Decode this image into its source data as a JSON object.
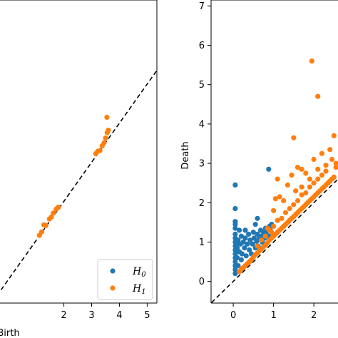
{
  "colors": {
    "h0": "#1f77b4",
    "h1": "#ff7f0e",
    "frame": "#000000",
    "diagonal": "#000000"
  },
  "chart_data": [
    {
      "type": "scatter",
      "xlabel": "Birth",
      "ylabel": "",
      "xlim": [
        -0.3,
        5.35
      ],
      "ylim": [
        -0.6,
        7.15
      ],
      "xticks": [
        {
          "v": 2,
          "label": "2"
        },
        {
          "v": 3,
          "label": "3"
        },
        {
          "v": 4,
          "label": "4"
        },
        {
          "v": 5,
          "label": "5"
        }
      ],
      "yticks": [],
      "diagonal": true,
      "grid": false,
      "legend": {
        "placement": "bottom-right",
        "entries": [
          "H0",
          "H1"
        ]
      },
      "series": [
        {
          "name": "H0",
          "color": "#1f77b4",
          "points": []
        },
        {
          "name": "H1",
          "color": "#ff7f0e",
          "points": [
            [
              1.12,
              1.13
            ],
            [
              1.2,
              1.22
            ],
            [
              1.28,
              1.4
            ],
            [
              1.35,
              1.38
            ],
            [
              1.48,
              1.55
            ],
            [
              1.55,
              1.6
            ],
            [
              1.62,
              1.7
            ],
            [
              1.72,
              1.8
            ],
            [
              1.8,
              1.85
            ],
            [
              3.15,
              3.22
            ],
            [
              3.22,
              3.28
            ],
            [
              3.3,
              3.3
            ],
            [
              3.38,
              3.42
            ],
            [
              3.45,
              3.5
            ],
            [
              3.5,
              3.62
            ],
            [
              3.56,
              3.76
            ],
            [
              3.6,
              3.82
            ],
            [
              3.55,
              4.15
            ]
          ]
        }
      ]
    },
    {
      "type": "scatter",
      "xlabel": "",
      "ylabel": "Death",
      "xlim": [
        -0.55,
        2.6
      ],
      "ylim": [
        -0.55,
        7.15
      ],
      "xticks": [
        {
          "v": 0,
          "label": "0"
        },
        {
          "v": 1,
          "label": "1"
        },
        {
          "v": 2,
          "label": "2"
        }
      ],
      "yticks": [
        {
          "v": 0,
          "label": "0"
        },
        {
          "v": 1,
          "label": "1"
        },
        {
          "v": 2,
          "label": "2"
        },
        {
          "v": 3,
          "label": "3"
        },
        {
          "v": 4,
          "label": "4"
        },
        {
          "v": 5,
          "label": "5"
        },
        {
          "v": 6,
          "label": "6"
        },
        {
          "v": 7,
          "label": "7"
        }
      ],
      "diagonal": true,
      "grid": false,
      "series": [
        {
          "name": "H0",
          "color": "#1f77b4",
          "points": [
            [
              0.05,
              2.45
            ],
            [
              0.05,
              1.85
            ],
            [
              0.05,
              1.52
            ],
            [
              0.05,
              1.45
            ],
            [
              0.05,
              1.35
            ],
            [
              0.05,
              1.2
            ],
            [
              0.05,
              1.1
            ],
            [
              0.05,
              1.0
            ],
            [
              0.05,
              0.9
            ],
            [
              0.05,
              0.8
            ],
            [
              0.05,
              0.7
            ],
            [
              0.05,
              0.6
            ],
            [
              0.05,
              0.5
            ],
            [
              0.05,
              0.4
            ],
            [
              0.05,
              0.3
            ],
            [
              0.05,
              0.2
            ],
            [
              0.08,
              0.95
            ],
            [
              0.1,
              0.85
            ],
            [
              0.12,
              1.05
            ],
            [
              0.15,
              0.75
            ],
            [
              0.18,
              0.95
            ],
            [
              0.2,
              1.15
            ],
            [
              0.22,
              0.7
            ],
            [
              0.25,
              1.0
            ],
            [
              0.28,
              0.85
            ],
            [
              0.3,
              1.1
            ],
            [
              0.32,
              0.65
            ],
            [
              0.35,
              0.95
            ],
            [
              0.38,
              1.2
            ],
            [
              0.4,
              0.8
            ],
            [
              0.42,
              1.05
            ],
            [
              0.45,
              0.7
            ],
            [
              0.48,
              0.95
            ],
            [
              0.5,
              1.25
            ],
            [
              0.52,
              1.1
            ],
            [
              0.55,
              0.85
            ],
            [
              0.58,
              1.02
            ],
            [
              0.6,
              1.2
            ],
            [
              0.62,
              0.9
            ],
            [
              0.65,
              1.1
            ],
            [
              0.68,
              1.3
            ],
            [
              0.7,
              1.15
            ],
            [
              0.72,
              1.0
            ],
            [
              0.75,
              1.25
            ],
            [
              0.78,
              1.1
            ],
            [
              0.8,
              1.35
            ],
            [
              0.82,
              1.2
            ],
            [
              0.85,
              1.3
            ],
            [
              0.88,
              1.15
            ],
            [
              0.9,
              1.4
            ],
            [
              0.92,
              1.3
            ],
            [
              0.95,
              1.45
            ],
            [
              0.55,
              1.45
            ],
            [
              0.6,
              1.6
            ],
            [
              0.88,
              2.85
            ],
            [
              0.3,
              1.3
            ],
            [
              0.2,
              0.55
            ],
            [
              0.15,
              1.3
            ],
            [
              0.1,
              0.6
            ],
            [
              0.12,
              0.4
            ]
          ]
        },
        {
          "name": "H1",
          "color": "#ff7f0e",
          "points": [
            [
              0.15,
              0.25
            ],
            [
              0.2,
              0.32
            ],
            [
              0.25,
              0.35
            ],
            [
              0.3,
              0.4
            ],
            [
              0.35,
              0.45
            ],
            [
              0.4,
              0.5
            ],
            [
              0.45,
              0.55
            ],
            [
              0.5,
              0.62
            ],
            [
              0.55,
              0.68
            ],
            [
              0.6,
              0.72
            ],
            [
              0.65,
              0.78
            ],
            [
              0.7,
              0.82
            ],
            [
              0.75,
              0.88
            ],
            [
              0.8,
              0.92
            ],
            [
              0.85,
              0.98
            ],
            [
              0.9,
              1.05
            ],
            [
              0.95,
              1.1
            ],
            [
              1.0,
              1.15
            ],
            [
              1.05,
              1.2
            ],
            [
              1.1,
              1.25
            ],
            [
              1.15,
              1.3
            ],
            [
              1.2,
              1.35
            ],
            [
              1.25,
              1.4
            ],
            [
              1.3,
              1.45
            ],
            [
              1.35,
              1.5
            ],
            [
              1.4,
              1.55
            ],
            [
              1.45,
              1.6
            ],
            [
              1.5,
              1.65
            ],
            [
              1.55,
              1.7
            ],
            [
              1.6,
              1.75
            ],
            [
              1.65,
              1.8
            ],
            [
              1.7,
              1.85
            ],
            [
              1.75,
              1.9
            ],
            [
              1.8,
              1.95
            ],
            [
              1.85,
              2.0
            ],
            [
              1.9,
              2.05
            ],
            [
              1.95,
              2.1
            ],
            [
              2.0,
              2.15
            ],
            [
              2.05,
              2.2
            ],
            [
              2.1,
              2.25
            ],
            [
              2.15,
              2.3
            ],
            [
              2.2,
              2.35
            ],
            [
              2.25,
              2.4
            ],
            [
              2.3,
              2.45
            ],
            [
              2.35,
              2.5
            ],
            [
              2.4,
              2.55
            ],
            [
              2.45,
              2.6
            ],
            [
              2.5,
              2.65
            ],
            [
              0.6,
              0.9
            ],
            [
              0.7,
              1.05
            ],
            [
              0.8,
              1.15
            ],
            [
              0.9,
              1.3
            ],
            [
              1.0,
              1.4
            ],
            [
              1.1,
              1.55
            ],
            [
              1.2,
              1.6
            ],
            [
              1.3,
              1.75
            ],
            [
              1.4,
              1.85
            ],
            [
              1.5,
              1.95
            ],
            [
              1.6,
              2.05
            ],
            [
              1.7,
              2.2
            ],
            [
              1.8,
              2.25
            ],
            [
              1.9,
              2.4
            ],
            [
              2.0,
              2.5
            ],
            [
              2.1,
              2.6
            ],
            [
              2.2,
              2.7
            ],
            [
              2.3,
              2.8
            ],
            [
              0.85,
              1.35
            ],
            [
              1.0,
              1.8
            ],
            [
              1.05,
              2.1
            ],
            [
              1.15,
              2.15
            ],
            [
              1.25,
              2.05
            ],
            [
              1.35,
              2.45
            ],
            [
              1.45,
              2.7
            ],
            [
              1.55,
              2.3
            ],
            [
              1.6,
              2.9
            ],
            [
              1.7,
              2.4
            ],
            [
              1.8,
              2.75
            ],
            [
              1.9,
              2.6
            ],
            [
              2.0,
              3.1
            ],
            [
              2.1,
              2.85
            ],
            [
              2.2,
              3.25
            ],
            [
              2.3,
              2.95
            ],
            [
              2.4,
              3.35
            ],
            [
              2.45,
              3.1
            ],
            [
              1.1,
              2.6
            ],
            [
              1.5,
              3.65
            ],
            [
              1.95,
              5.6
            ],
            [
              2.1,
              4.7
            ],
            [
              2.5,
              3.7
            ],
            [
              1.7,
              2.85
            ],
            [
              0.95,
              1.25
            ],
            [
              2.55,
              2.9
            ],
            [
              2.55,
              3.0
            ]
          ]
        }
      ]
    }
  ]
}
